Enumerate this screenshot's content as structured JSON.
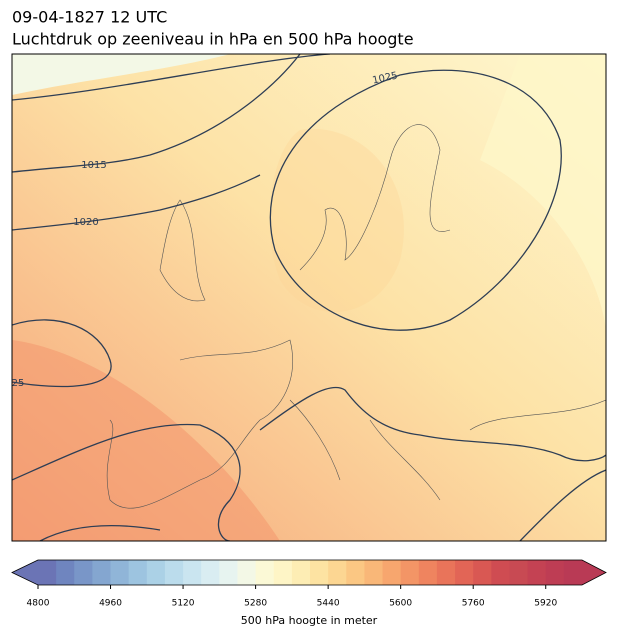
{
  "header": {
    "time": "09-04-1827 12 UTC",
    "title": "Luchtdruk op zeeniveau in hPa en 500 hPa hoogte"
  },
  "contour_labels": [
    "1015",
    "1020",
    "1025",
    "25"
  ],
  "colorbar": {
    "label": "500 hPa hoogte in meter",
    "lim": [
      4800,
      6000
    ],
    "ticks": [
      4800,
      4960,
      5120,
      5280,
      5440,
      5600,
      5760,
      5920
    ],
    "colors": [
      "#6b74b5",
      "#6f85bf",
      "#7996c8",
      "#84a6d0",
      "#90b5d8",
      "#9dc4e0",
      "#abd1e6",
      "#bbdcec",
      "#cae5f0",
      "#d9edf2",
      "#e7f4f0",
      "#f3f8e6",
      "#fbf9d6",
      "#fef5c6",
      "#fdedb4",
      "#fde3a2",
      "#fcd692",
      "#fbc783",
      "#f9b778",
      "#f7a66e",
      "#f39566",
      "#ef845f",
      "#e9745a",
      "#e26556",
      "#d95853",
      "#cf4c52",
      "#c84a53",
      "#c44253",
      "#be3d54",
      "#b93a55"
    ]
  }
}
